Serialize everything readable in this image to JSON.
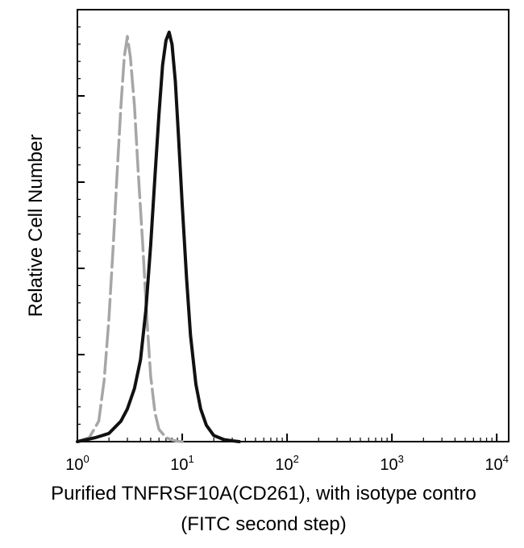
{
  "chart_data": {
    "type": "line",
    "title": "",
    "ylabel": "Relative Cell Number",
    "xlabel_lines": [
      "Purified TNFRSF10A(CD261), with isotype contro",
      "(FITC second step)"
    ],
    "x_scale": "log",
    "xlim": [
      1,
      13000
    ],
    "ylim": [
      0,
      1
    ],
    "grid": false,
    "legend": "none",
    "x_ticks": [
      {
        "base": "10",
        "exp": "0",
        "value": 1
      },
      {
        "base": "10",
        "exp": "1",
        "value": 10
      },
      {
        "base": "10",
        "exp": "2",
        "value": 100
      },
      {
        "base": "10",
        "exp": "3",
        "value": 1000
      },
      {
        "base": "10",
        "exp": "4",
        "value": 10000
      }
    ],
    "series": [
      {
        "style": "dashed",
        "color": "#a6a6a6",
        "x": [
          1.0,
          1.3,
          1.6,
          1.8,
          2.0,
          2.2,
          2.4,
          2.6,
          2.8,
          3.0,
          3.2,
          3.5,
          3.8,
          4.2,
          4.6,
          5.0,
          5.5,
          6.0,
          7.0,
          8.0,
          9.0,
          10.0
        ],
        "y": [
          0.0,
          0.01,
          0.05,
          0.15,
          0.3,
          0.48,
          0.66,
          0.82,
          0.94,
          0.99,
          0.94,
          0.82,
          0.66,
          0.48,
          0.3,
          0.16,
          0.07,
          0.03,
          0.01,
          0.004,
          0.001,
          0.0
        ]
      },
      {
        "style": "solid",
        "color": "#111111",
        "x": [
          1.0,
          1.5,
          2.0,
          2.6,
          3.0,
          3.5,
          4.0,
          4.5,
          5.0,
          5.5,
          6.0,
          6.5,
          7.0,
          7.5,
          8.0,
          8.6,
          9.2,
          10.0,
          11.0,
          12.0,
          13.5,
          15.0,
          17.0,
          20.0,
          25.0,
          30.0,
          35.0
        ],
        "y": [
          0.0,
          0.01,
          0.02,
          0.05,
          0.08,
          0.13,
          0.2,
          0.32,
          0.48,
          0.65,
          0.8,
          0.92,
          0.98,
          1.0,
          0.97,
          0.88,
          0.75,
          0.58,
          0.4,
          0.26,
          0.14,
          0.08,
          0.04,
          0.015,
          0.005,
          0.002,
          0.0
        ]
      }
    ]
  }
}
